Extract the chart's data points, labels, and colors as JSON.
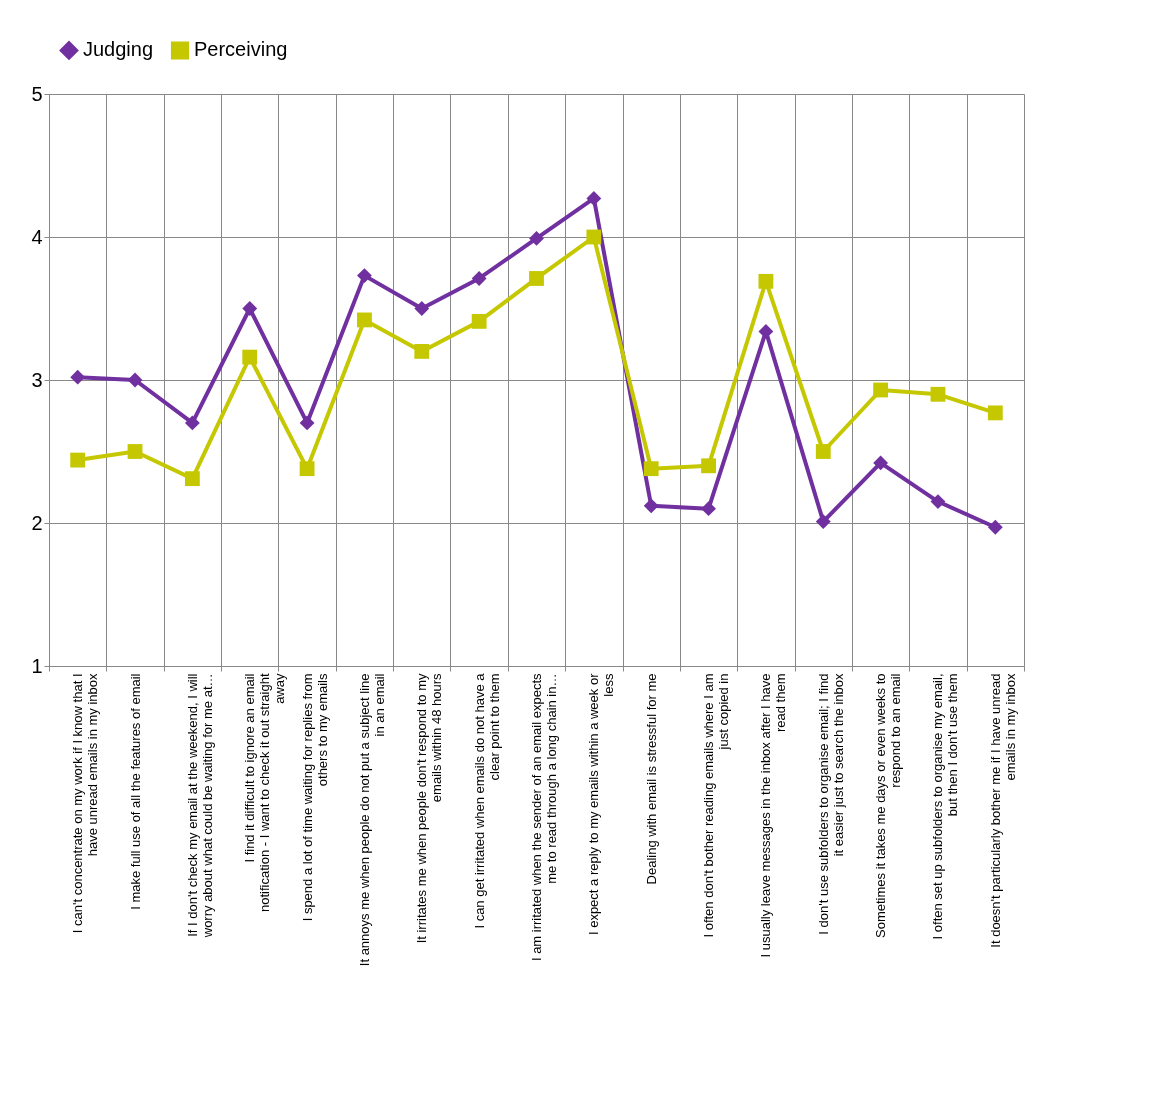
{
  "chart_data": {
    "type": "line",
    "categories": [
      "I can't concentrate on my work if I know that I have unread emails in my inbox",
      "I make full use of all the features of email",
      "If I don't check my email at the weekend, I will worry about what could be waiting for me at…",
      "I find it difficult to ignore an email notification - I want to check it out straight away",
      "I spend a lot of time waiting for replies from others to my emails",
      "It annoys me when people do not put a subject line in an email",
      "It irritates me when people don't respond to my emails within 48 hours",
      "I can get irritated when emails do not have a clear point to them",
      "I am irritated when the sender of an email expects me to read through a long chain in…",
      "I expect a reply to my emails within a week or less",
      "Dealing with email is stressful for me",
      "I often don't bother reading emails where I am just copied in",
      "I usually leave messages in the inbox after I have read them",
      "I don't use subfolders to organise email; I find it easier just to search the inbox",
      "Sometimes it takes me days or even weeks to respond to an email",
      "I often set up subfolders to organise my email, but then I don't use them",
      "It doesn't particularly bother me if I have unread emails in my inbox"
    ],
    "series": [
      {
        "name": "Judging",
        "color": "#7030a0",
        "marker": "diamond",
        "values": [
          3.02,
          3.0,
          2.7,
          3.5,
          2.7,
          3.73,
          3.5,
          3.71,
          3.99,
          4.27,
          2.12,
          2.1,
          3.34,
          2.01,
          2.42,
          2.15,
          1.97
        ]
      },
      {
        "name": "Perceiving",
        "color": "#c5c800",
        "marker": "square",
        "values": [
          2.44,
          2.5,
          2.31,
          3.16,
          2.38,
          3.42,
          3.2,
          3.41,
          3.71,
          4.0,
          2.38,
          2.4,
          3.69,
          2.5,
          2.93,
          2.9,
          2.77
        ]
      }
    ],
    "ylim": [
      1,
      5
    ],
    "yticks": [
      1,
      2,
      3,
      4,
      5
    ],
    "grid": true,
    "legend": "top",
    "line_style": "solid"
  }
}
